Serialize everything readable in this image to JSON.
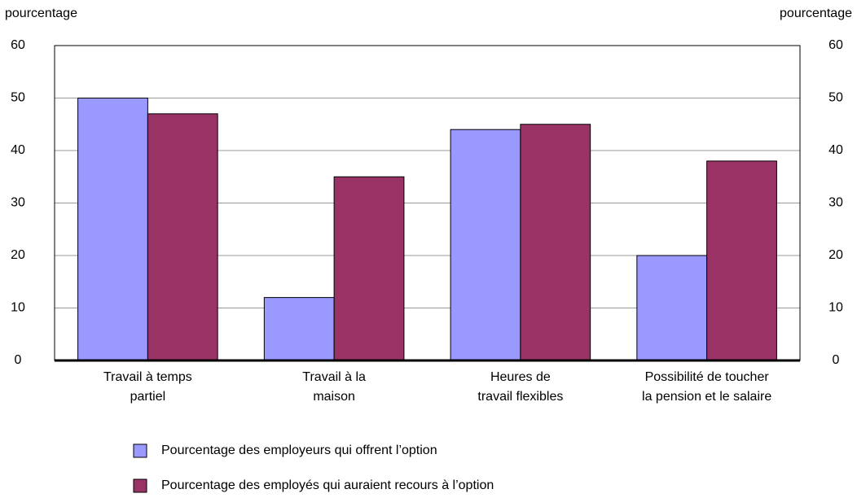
{
  "chart_data": {
    "type": "bar",
    "ylabel": "pourcentage",
    "y2label": "pourcentage",
    "categories": [
      "Travail à temps\npartiel",
      "Travail à la\nmaison",
      "Heures de\ntravail flexibles",
      "Possibilité de toucher\nla pension et le salaire"
    ],
    "series": [
      {
        "name": "Pourcentage des employeurs qui offrent l’option",
        "color": "#9999ff",
        "values": [
          50,
          12,
          44,
          20
        ]
      },
      {
        "name": "Pourcentage des employés qui auraient recours à l’option",
        "color": "#993366",
        "values": [
          47,
          35,
          45,
          38
        ]
      }
    ],
    "ylim": [
      0,
      60
    ],
    "yticks": [
      0,
      10,
      20,
      30,
      40,
      50,
      60
    ],
    "y2lim": [
      0,
      60
    ],
    "y2ticks": [
      0,
      10,
      20,
      30,
      40,
      50,
      60
    ],
    "grid": true
  }
}
